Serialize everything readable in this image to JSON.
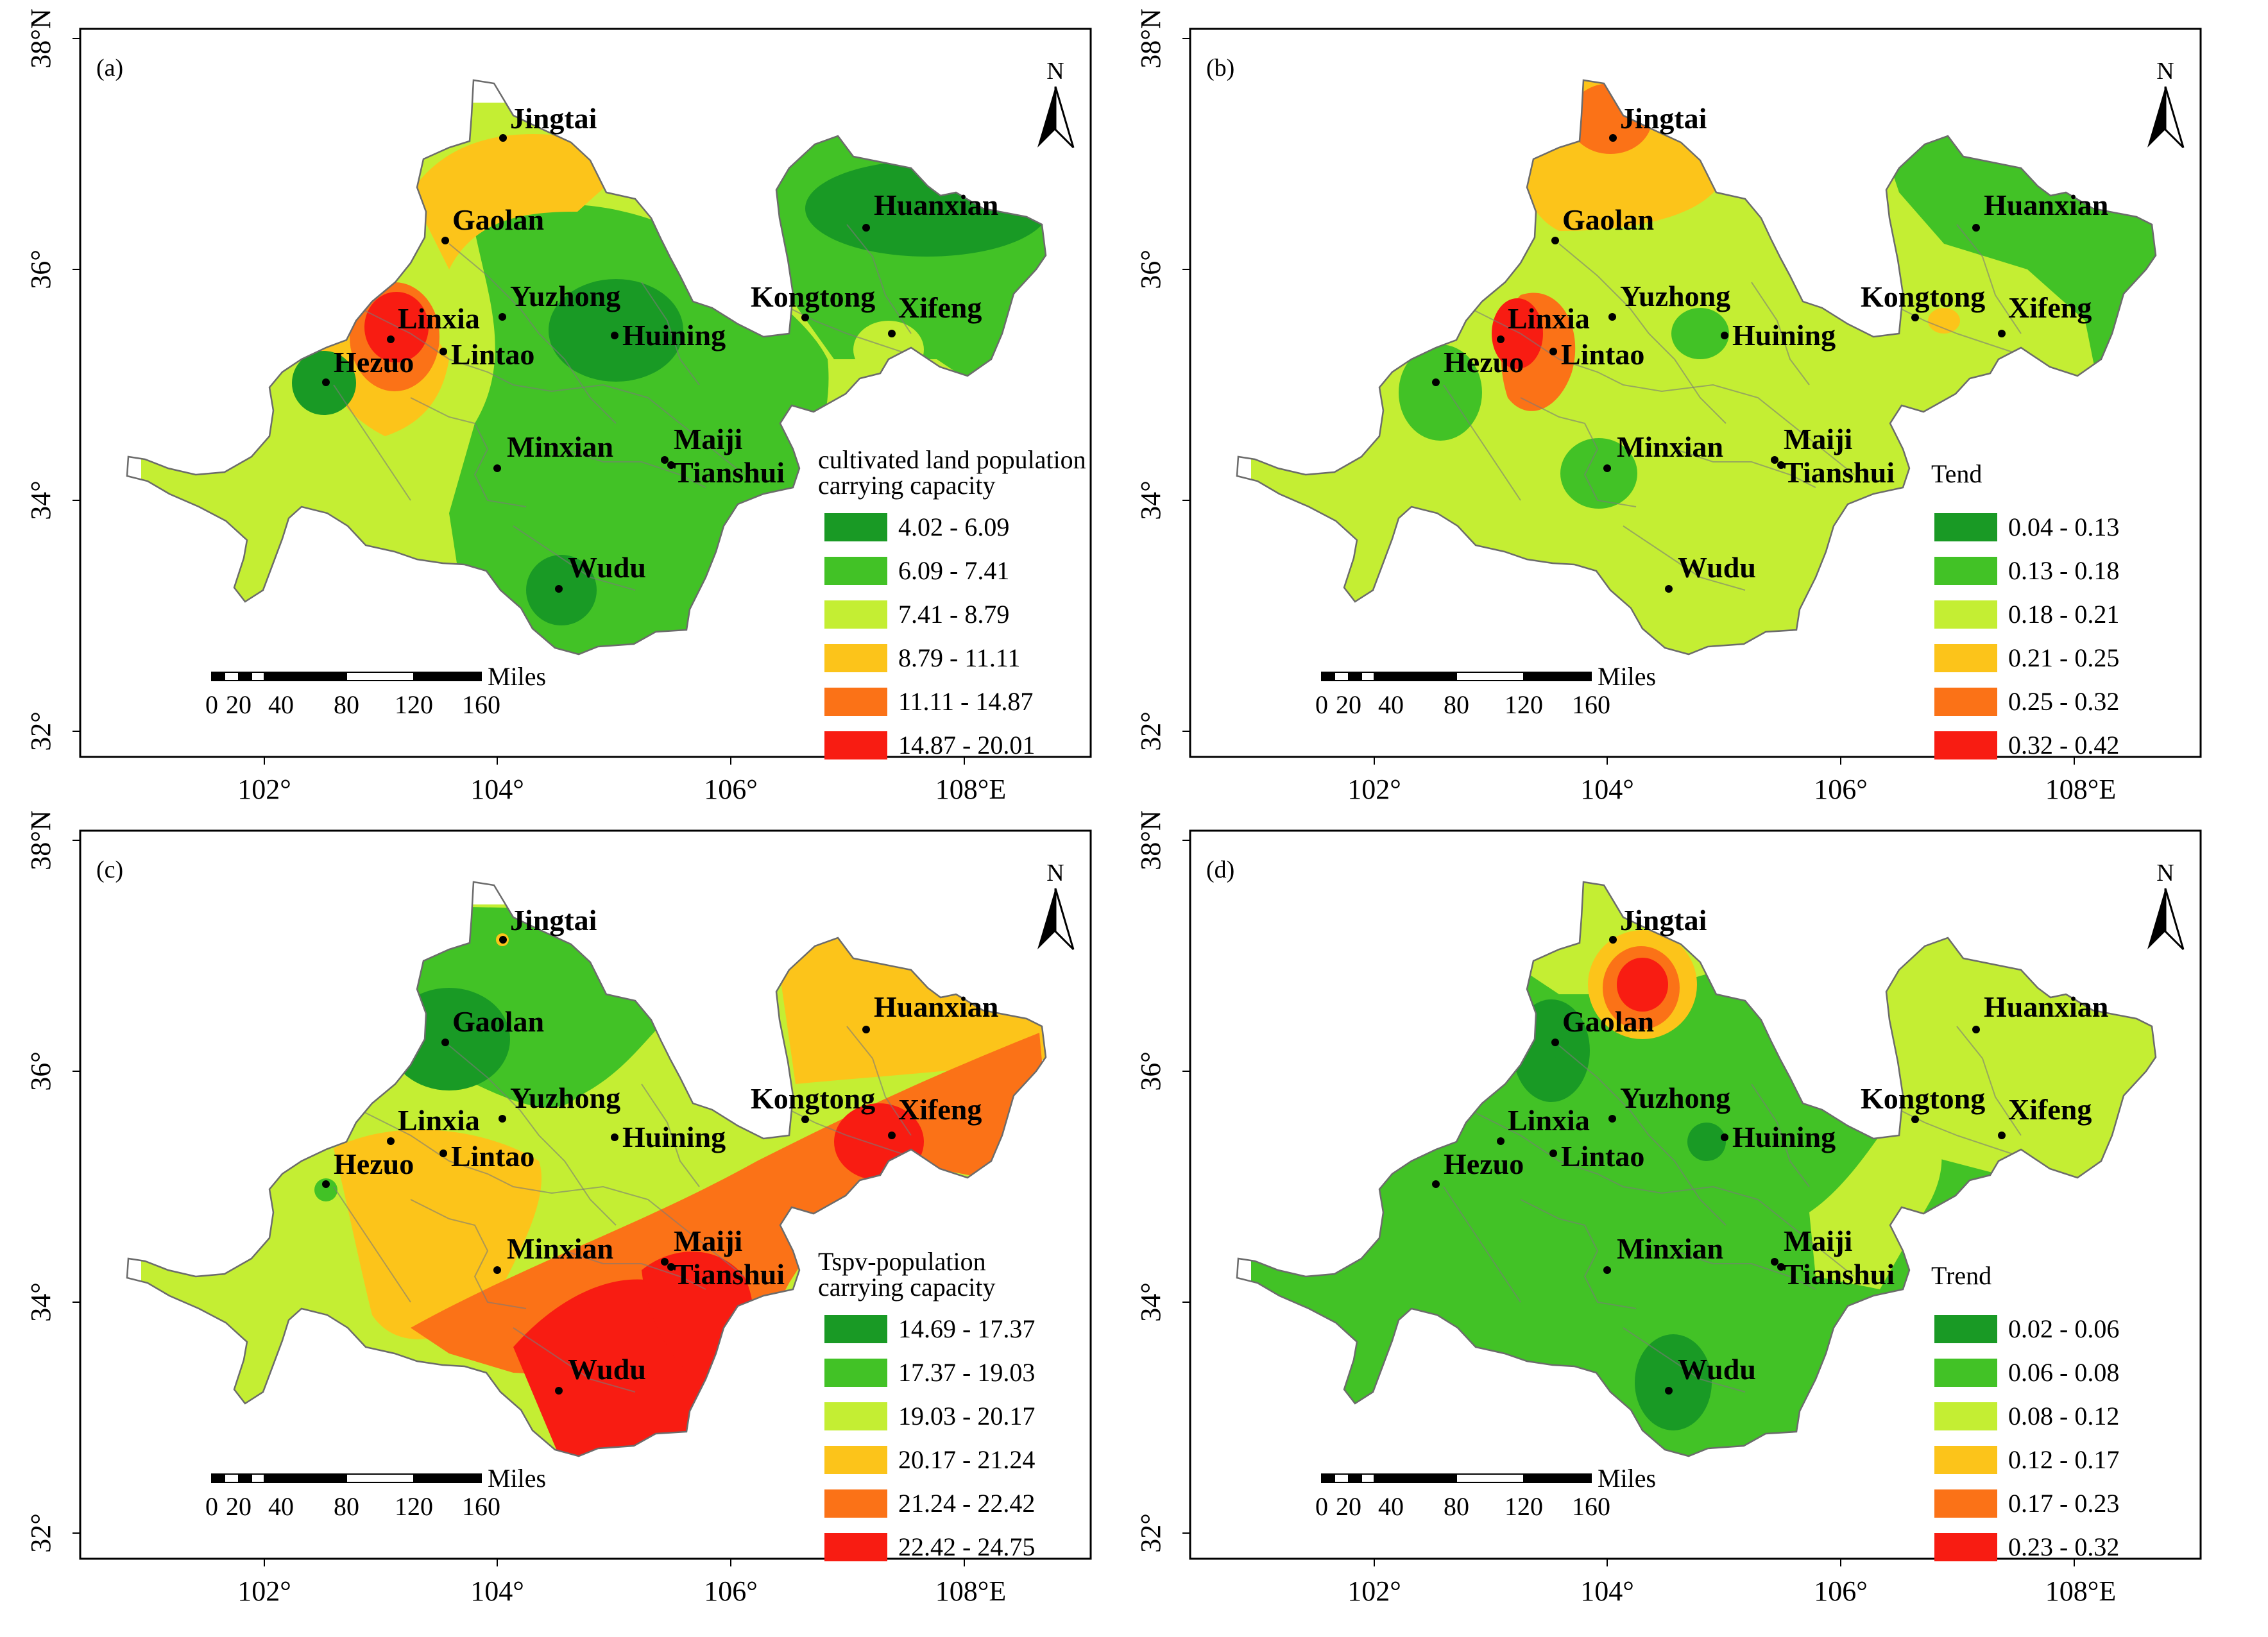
{
  "figure": {
    "panels": [
      {
        "id": "a",
        "tag": "(a)",
        "legend_title": [
          "cultivated land population",
          "carrying capacity"
        ],
        "legend": [
          {
            "range": "4.02 - 6.09",
            "color": "#199a25"
          },
          {
            "range": "6.09 - 7.41",
            "color": "#42c226"
          },
          {
            "range": "7.41 - 8.79",
            "color": "#c4ee33"
          },
          {
            "range": "8.79 - 11.11",
            "color": "#fcc41a"
          },
          {
            "range": "11.11 - 14.87",
            "color": "#fb7217"
          },
          {
            "range": "14.87 - 20.01",
            "color": "#f81c12"
          }
        ]
      },
      {
        "id": "b",
        "tag": "(b)",
        "legend_title": [
          "Tend"
        ],
        "legend": [
          {
            "range": "0.04 - 0.13",
            "color": "#199a25"
          },
          {
            "range": "0.13 - 0.18",
            "color": "#42c226"
          },
          {
            "range": "0.18 - 0.21",
            "color": "#c4ee33"
          },
          {
            "range": "0.21 - 0.25",
            "color": "#fcc41a"
          },
          {
            "range": "0.25 - 0.32",
            "color": "#fb7217"
          },
          {
            "range": "0.32 - 0.42",
            "color": "#f81c12"
          }
        ]
      },
      {
        "id": "c",
        "tag": "(c)",
        "legend_title": [
          "Tspv-population",
          "carrying capacity"
        ],
        "legend": [
          {
            "range": "14.69 - 17.37",
            "color": "#199a25"
          },
          {
            "range": "17.37 - 19.03",
            "color": "#42c226"
          },
          {
            "range": "19.03 - 20.17",
            "color": "#c4ee33"
          },
          {
            "range": "20.17 - 21.24",
            "color": "#fcc41a"
          },
          {
            "range": "21.24 - 22.42",
            "color": "#fb7217"
          },
          {
            "range": "22.42 - 24.75",
            "color": "#f81c12"
          }
        ]
      },
      {
        "id": "d",
        "tag": "(d)",
        "legend_title": [
          "Trend"
        ],
        "legend": [
          {
            "range": "0.02 - 0.06",
            "color": "#199a25"
          },
          {
            "range": "0.06 - 0.08",
            "color": "#42c226"
          },
          {
            "range": "0.08 - 0.12",
            "color": "#c4ee33"
          },
          {
            "range": "0.12 - 0.17",
            "color": "#fcc41a"
          },
          {
            "range": "0.17 - 0.23",
            "color": "#fb7217"
          },
          {
            "range": "0.23 - 0.32",
            "color": "#f81c12"
          }
        ]
      }
    ],
    "cities": [
      "Jingtai",
      "Gaolan",
      "Linxia",
      "Yuzhong",
      "Huining",
      "Hezuo",
      "Lintao",
      "Minxian",
      "Maiji",
      "Tianshui",
      "Wudu",
      "Kongtong",
      "Xifeng",
      "Huanxian"
    ],
    "lon_ticks": [
      "102°",
      "104°",
      "106°",
      "108°E"
    ],
    "lat_ticks": [
      "38°N",
      "36°",
      "34°",
      "32°"
    ],
    "north_label": "N",
    "scale_unit": "Miles",
    "scale_ticks": [
      "0",
      "20",
      "40",
      "80",
      "120",
      "160"
    ]
  }
}
